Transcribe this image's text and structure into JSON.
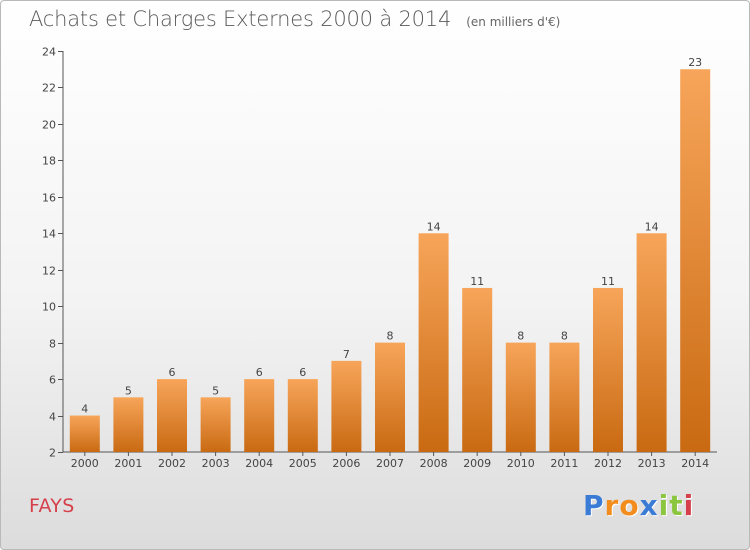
{
  "header": {
    "title": "Achats et Charges Externes 2000 à 2014",
    "unit": "(en milliers d'€)"
  },
  "footer": {
    "commune": "FAYS",
    "logo_letters": [
      "P",
      "r",
      "o",
      "x",
      "i",
      "t",
      "i"
    ],
    "logo_colors": [
      "#3a7bd5",
      "#f28c1c",
      "#f28c1c",
      "#3a7bd5",
      "#8cc63f",
      "#8cc63f",
      "#d6404a"
    ]
  },
  "colors": {
    "bar_top": "#f7a55a",
    "bar_bottom": "#c96a12",
    "axis": "#555555",
    "grid_tick": "#555555"
  },
  "chart_data": {
    "type": "bar",
    "categories": [
      "2000",
      "2001",
      "2002",
      "2003",
      "2004",
      "2005",
      "2006",
      "2007",
      "2008",
      "2009",
      "2010",
      "2011",
      "2012",
      "2013",
      "2014"
    ],
    "values": [
      4,
      5,
      6,
      5,
      6,
      6,
      7,
      8,
      14,
      11,
      8,
      8,
      11,
      14,
      23
    ],
    "title": "Achats et Charges Externes 2000 à 2014",
    "xlabel": "",
    "ylabel": "",
    "ylim": [
      2,
      24
    ],
    "yticks": [
      2,
      4,
      6,
      8,
      10,
      12,
      14,
      16,
      18,
      20,
      22,
      24
    ],
    "grid": false,
    "legend": "none"
  }
}
